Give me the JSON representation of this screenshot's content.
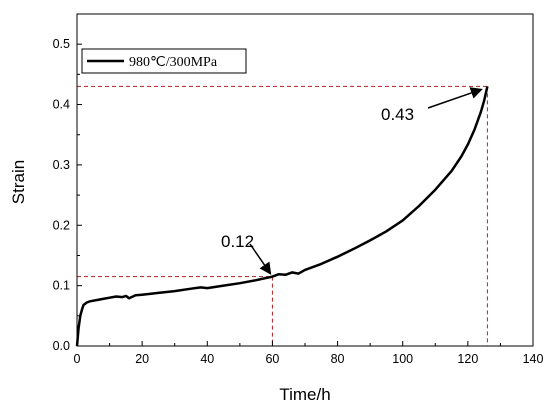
{
  "chart_data": {
    "type": "line",
    "xlabel": "Time/h",
    "ylabel": "Strain",
    "xlim": [
      0,
      140
    ],
    "ylim": [
      0,
      0.55
    ],
    "x_ticks": [
      "0",
      "20",
      "40",
      "60",
      "80",
      "100",
      "120",
      "140"
    ],
    "y_ticks": [
      "0.0",
      "0.1",
      "0.2",
      "0.3",
      "0.4",
      "0.5"
    ],
    "x_tick_values": [
      0,
      20,
      40,
      60,
      80,
      100,
      120,
      140
    ],
    "y_tick_values": [
      0,
      0.1,
      0.2,
      0.3,
      0.4,
      0.5
    ],
    "legend": {
      "position": "top-left"
    },
    "series": [
      {
        "name": "980℃/300MPa",
        "color": "#000000",
        "x": [
          0,
          0.5,
          1,
          1.5,
          2,
          3,
          4,
          6,
          8,
          10,
          12,
          14,
          15,
          16,
          18,
          20,
          25,
          30,
          35,
          38,
          40,
          45,
          50,
          55,
          60,
          62,
          64,
          66,
          68,
          70,
          75,
          80,
          85,
          90,
          95,
          100,
          105,
          110,
          115,
          118,
          120,
          122,
          124,
          125,
          126
        ],
        "values": [
          0,
          0.03,
          0.05,
          0.06,
          0.068,
          0.072,
          0.074,
          0.076,
          0.078,
          0.08,
          0.082,
          0.081,
          0.083,
          0.079,
          0.084,
          0.085,
          0.088,
          0.091,
          0.095,
          0.097,
          0.096,
          0.1,
          0.104,
          0.109,
          0.115,
          0.119,
          0.118,
          0.122,
          0.12,
          0.126,
          0.136,
          0.148,
          0.161,
          0.175,
          0.19,
          0.208,
          0.232,
          0.259,
          0.29,
          0.314,
          0.334,
          0.358,
          0.388,
          0.406,
          0.43
        ]
      }
    ],
    "annotations": [
      {
        "label": "0.12",
        "x": 60,
        "y": 0.115,
        "label_x": 57,
        "label_y": 0.148
      },
      {
        "label": "0.43",
        "x": 126,
        "y": 0.43,
        "label_x": 105,
        "label_y": 0.4
      }
    ],
    "reference_lines_color": "#b22222"
  }
}
